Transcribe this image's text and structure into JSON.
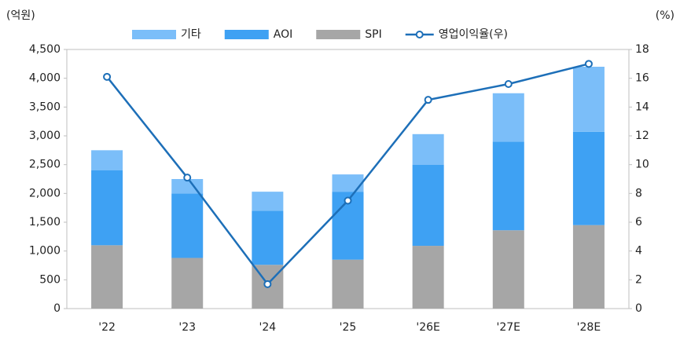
{
  "chart_data": {
    "type": "bar",
    "stacked": true,
    "y_label": "(억원)",
    "y2_label": "(%)",
    "categories": [
      "'22",
      "'23",
      "'24",
      "'25",
      "'26E",
      "'27E",
      "'28E"
    ],
    "series": [
      {
        "name": "SPI",
        "color": "#a6a6a6",
        "values": [
          1100,
          880,
          760,
          850,
          1090,
          1360,
          1450
        ]
      },
      {
        "name": "AOI",
        "color": "#3ea1f3",
        "values": [
          1300,
          1120,
          940,
          1180,
          1410,
          1540,
          1620
        ]
      },
      {
        "name": "기타",
        "color": "#7bbef9",
        "values": [
          350,
          250,
          330,
          300,
          530,
          840,
          1130
        ]
      },
      {
        "name": "영업이익율(우)",
        "type": "line",
        "axis": "y2",
        "color": "#1d6fb8",
        "values": [
          16.1,
          9.1,
          1.7,
          7.5,
          14.5,
          15.6,
          17.0
        ]
      }
    ],
    "legend_order": [
      2,
      1,
      0,
      3
    ],
    "legend": "top",
    "ylim": [
      0,
      4500
    ],
    "yticks": [
      0,
      500,
      {
        "value": 1000,
        "label": "1,000"
      },
      {
        "value": 1500,
        "label": "1,500"
      },
      {
        "value": 2000,
        "label": "2,000"
      },
      {
        "value": 2500,
        "label": "2,500"
      },
      {
        "value": 3000,
        "label": "3,000"
      },
      {
        "value": 3500,
        "label": "3,500"
      },
      {
        "value": 4000,
        "label": "4,000"
      },
      {
        "value": 4500,
        "label": "4,500"
      }
    ],
    "y2lim": [
      0,
      18
    ],
    "y2ticks": [
      0,
      2,
      4,
      6,
      8,
      10,
      12,
      14,
      16,
      18
    ]
  }
}
